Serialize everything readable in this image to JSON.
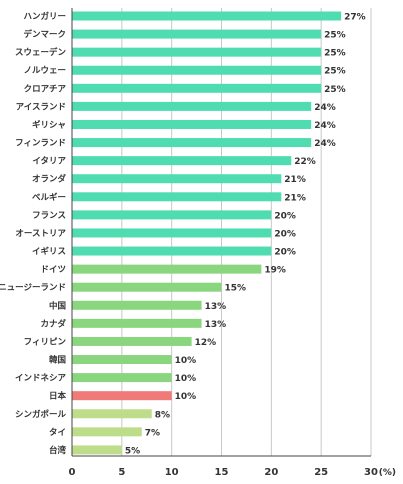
{
  "chart_data": {
    "type": "bar",
    "orientation": "horizontal",
    "categories": [
      "ハンガリー",
      "デンマーク",
      "スウェーデン",
      "ノルウェー",
      "クロアチア",
      "アイスランド",
      "ギリシャ",
      "フィンランド",
      "イタリア",
      "オランダ",
      "ベルギー",
      "フランス",
      "オーストリア",
      "イギリス",
      "ドイツ",
      "ニュージーランド",
      "中国",
      "カナダ",
      "フィリピン",
      "韓国",
      "インドネシア",
      "日本",
      "シンガポール",
      "タイ",
      "台湾"
    ],
    "values": [
      27,
      25,
      25,
      25,
      25,
      24,
      24,
      24,
      22,
      21,
      21,
      20,
      20,
      20,
      19,
      15,
      13,
      13,
      12,
      10,
      10,
      10,
      8,
      7,
      5
    ],
    "value_labels": [
      "27%",
      "25%",
      "25%",
      "25%",
      "25%",
      "24%",
      "24%",
      "24%",
      "22%",
      "21%",
      "21%",
      "20%",
      "20%",
      "20%",
      "19%",
      "15%",
      "13%",
      "13%",
      "12%",
      "10%",
      "10%",
      "10%",
      "8%",
      "7%",
      "5%"
    ],
    "colors": [
      "#4fdcb0",
      "#4fdcb0",
      "#4fdcb0",
      "#4fdcb0",
      "#4fdcb0",
      "#4fdcb0",
      "#4fdcb0",
      "#4fdcb0",
      "#4fdcb0",
      "#4fdcb0",
      "#4fdcb0",
      "#4fdcb0",
      "#4fdcb0",
      "#4fdcb0",
      "#8ad67e",
      "#8ad67e",
      "#8ad67e",
      "#8ad67e",
      "#8ad67e",
      "#8ad67e",
      "#8ad67e",
      "#f07a78",
      "#bedd8a",
      "#bedd8a",
      "#bedd8a"
    ],
    "xlim": [
      0,
      30
    ],
    "xticks": [
      0,
      5,
      10,
      15,
      20,
      25,
      30
    ],
    "xtick_labels": [
      "0",
      "5",
      "10",
      "15",
      "20",
      "25",
      "30"
    ],
    "unit": "(%)",
    "grid": "vertical",
    "legend": "none"
  }
}
